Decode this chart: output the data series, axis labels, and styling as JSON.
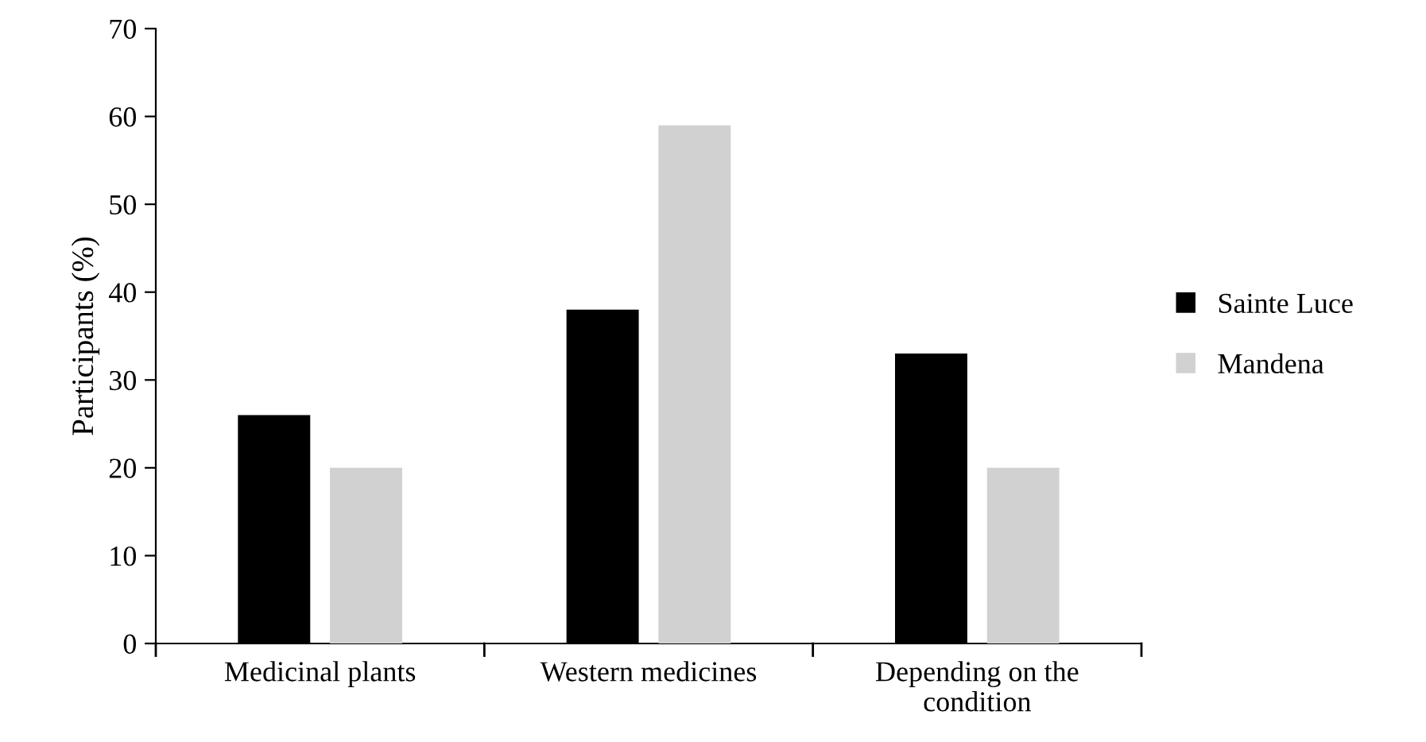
{
  "chart_data": {
    "type": "bar",
    "ylabel": "Participants (%)",
    "categories": [
      "Medicinal plants",
      "Western medicines",
      "Depending on the\ncondition"
    ],
    "series": [
      {
        "name": "Sainte Luce",
        "color": "#000000",
        "values": [
          26,
          38,
          33
        ]
      },
      {
        "name": "Mandena",
        "color": "#d0d1d0",
        "values": [
          20,
          59,
          20
        ]
      }
    ],
    "ylim": [
      0,
      70
    ],
    "yticks": [
      0,
      10,
      20,
      30,
      40,
      50,
      60,
      70
    ],
    "grid": false,
    "legend": "right"
  }
}
